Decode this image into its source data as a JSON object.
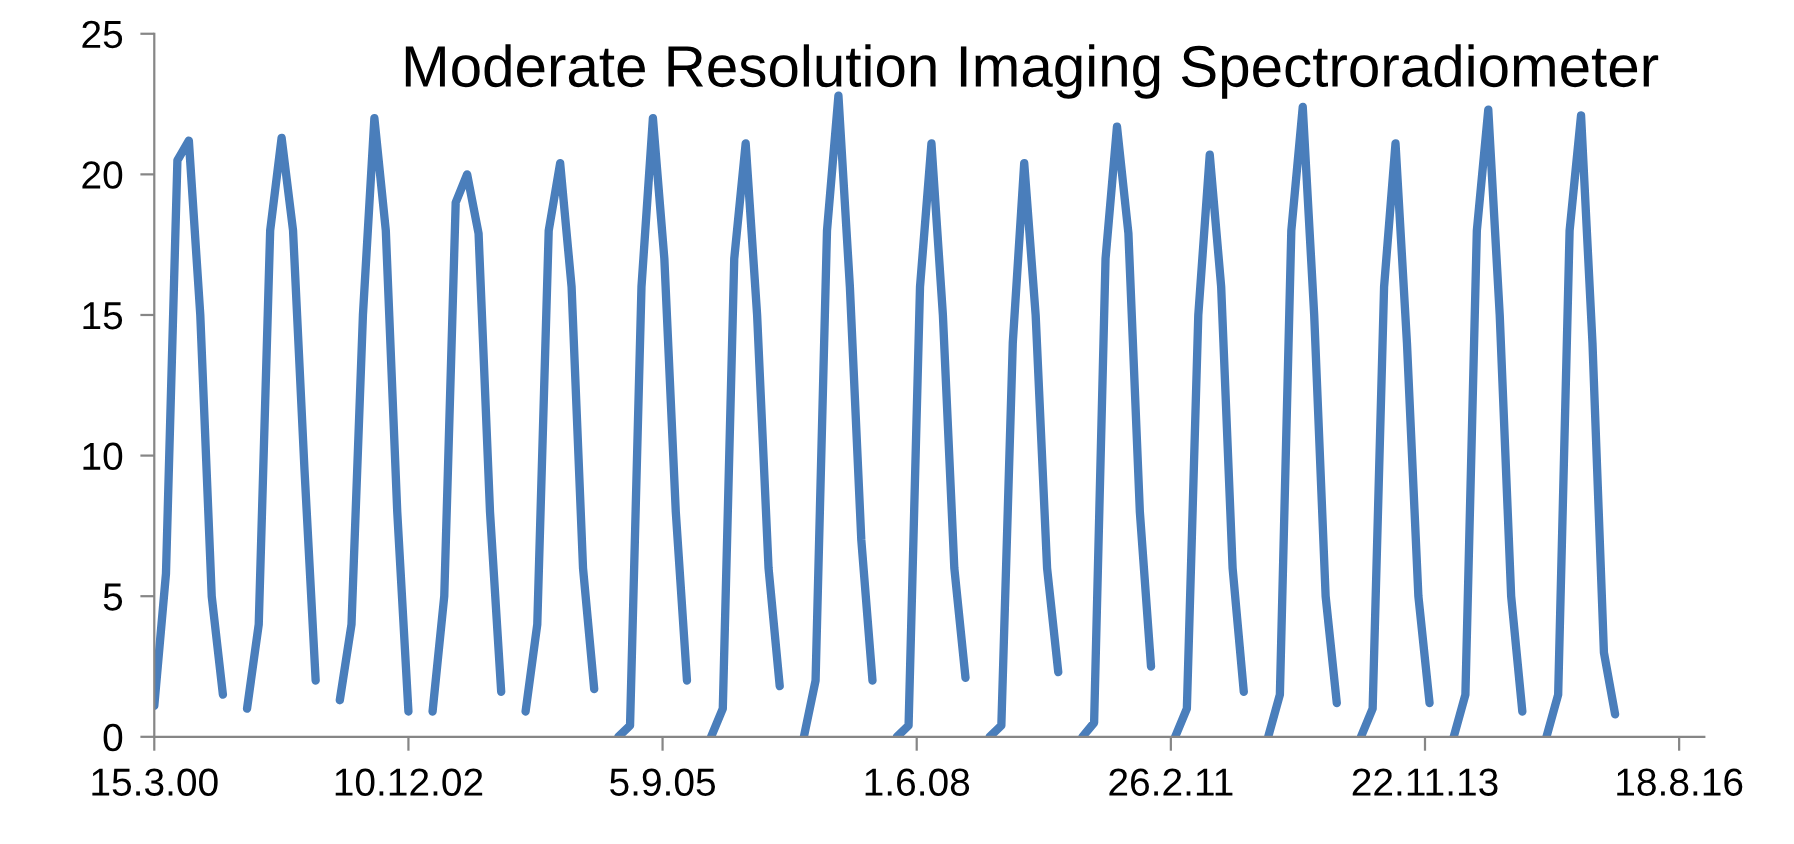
{
  "chart_data": {
    "type": "line",
    "title": "Moderate Resolution Imaging Spectroradiometer",
    "x": [
      "2000-03-15",
      "2000-04-30",
      "2000-06-14",
      "2000-07-29",
      "2000-09-12",
      "2000-10-27",
      "2000-12-10",
      "2001-02-01",
      "2001-03-15",
      "2001-04-30",
      "2001-06-14",
      "2001-07-29",
      "2001-09-12",
      "2001-10-27",
      "2001-12-10",
      "2002-02-01",
      "2002-03-15",
      "2002-04-30",
      "2002-06-14",
      "2002-07-29",
      "2002-09-12",
      "2002-10-27",
      "2002-12-10",
      "2003-02-01",
      "2003-03-15",
      "2003-04-30",
      "2003-06-14",
      "2003-07-29",
      "2003-09-12",
      "2003-10-27",
      "2003-12-10",
      "2004-02-01",
      "2004-03-15",
      "2004-04-30",
      "2004-06-14",
      "2004-07-29",
      "2004-09-12",
      "2004-10-27",
      "2004-12-10",
      "2005-02-01",
      "2005-03-15",
      "2005-04-30",
      "2005-06-14",
      "2005-07-29",
      "2005-09-12",
      "2005-10-27",
      "2005-12-10",
      "2006-02-01",
      "2006-03-15",
      "2006-04-30",
      "2006-06-14",
      "2006-07-29",
      "2006-09-12",
      "2006-10-27",
      "2006-12-10",
      "2007-02-01",
      "2007-03-15",
      "2007-04-30",
      "2007-06-14",
      "2007-07-29",
      "2007-09-12",
      "2007-10-27",
      "2007-12-10",
      "2008-02-01",
      "2008-03-15",
      "2008-04-30",
      "2008-06-14",
      "2008-07-29",
      "2008-09-12",
      "2008-10-27",
      "2008-12-10",
      "2009-02-01",
      "2009-03-15",
      "2009-04-30",
      "2009-06-14",
      "2009-07-29",
      "2009-09-12",
      "2009-10-27",
      "2009-12-10",
      "2010-02-01",
      "2010-03-15",
      "2010-04-30",
      "2010-06-14",
      "2010-07-29",
      "2010-09-12",
      "2010-10-27",
      "2010-12-10",
      "2011-02-01",
      "2011-03-15",
      "2011-04-30",
      "2011-06-14",
      "2011-07-29",
      "2011-09-12",
      "2011-10-27",
      "2011-12-10",
      "2012-02-01",
      "2012-03-15",
      "2012-04-30",
      "2012-06-14",
      "2012-07-29",
      "2012-09-12",
      "2012-10-27",
      "2012-12-10",
      "2013-02-01",
      "2013-03-15",
      "2013-04-30",
      "2013-06-14",
      "2013-07-29",
      "2013-09-12",
      "2013-10-27",
      "2013-12-10",
      "2014-02-01",
      "2014-03-15",
      "2014-04-30",
      "2014-06-14",
      "2014-07-29",
      "2014-09-12",
      "2014-10-27",
      "2014-12-10",
      "2015-02-01",
      "2015-03-15",
      "2015-04-30",
      "2015-06-14",
      "2015-07-29",
      "2015-09-12",
      "2015-10-27",
      "2015-12-10"
    ],
    "series": [
      {
        "color": "#4a7ebb",
        "values": [
          1.1,
          5.8,
          20.5,
          21.2,
          15,
          5,
          1.5,
          null,
          1.0,
          4,
          18,
          21.3,
          18,
          9.5,
          2.0,
          null,
          1.3,
          4,
          15,
          22.0,
          18,
          8,
          0.9,
          null,
          0.9,
          5,
          19,
          20.0,
          17.9,
          8,
          1.6,
          null,
          0.9,
          4,
          18,
          20.4,
          16,
          6,
          1.7,
          null,
          0.0,
          0.4,
          16,
          22.0,
          17,
          8,
          2.0,
          null,
          0.0,
          1,
          17,
          21.1,
          15,
          6,
          1.8,
          null,
          0.0,
          2,
          18,
          22.8,
          16,
          7,
          2.0,
          null,
          0.0,
          0.4,
          16,
          21.1,
          15,
          6,
          2.1,
          null,
          0.0,
          0.4,
          14,
          20.4,
          15,
          6,
          2.3,
          null,
          0.0,
          0.5,
          17,
          21.7,
          17.9,
          8,
          2.5,
          null,
          0.0,
          1,
          15,
          20.7,
          16,
          6,
          1.6,
          null,
          0.0,
          1.5,
          18,
          22.4,
          15,
          5,
          1.2,
          null,
          0.0,
          1,
          16,
          21.1,
          14,
          5,
          1.2,
          null,
          0.0,
          1.5,
          18,
          22.3,
          15,
          5,
          0.9,
          null,
          0.0,
          1.5,
          18,
          22.1,
          14,
          3,
          0.8
        ]
      }
    ],
    "xlim": [
      "2000-03-15",
      "2016-11-25"
    ],
    "xticks": [
      {
        "value": "2000-03-15",
        "label": "15.3.00"
      },
      {
        "value": "2002-12-10",
        "label": "10.12.02"
      },
      {
        "value": "2005-09-05",
        "label": "5.9.05"
      },
      {
        "value": "2008-06-01",
        "label": "1.6.08"
      },
      {
        "value": "2011-02-26",
        "label": "26.2.11"
      },
      {
        "value": "2013-11-22",
        "label": "22.11.13"
      },
      {
        "value": "2016-08-18",
        "label": "18.8.16"
      }
    ],
    "ylim": [
      0,
      25
    ],
    "yticks": [
      0,
      5,
      10,
      15,
      20,
      25
    ],
    "grid": false,
    "legend": false,
    "marker": "none",
    "line_style": "solid"
  }
}
